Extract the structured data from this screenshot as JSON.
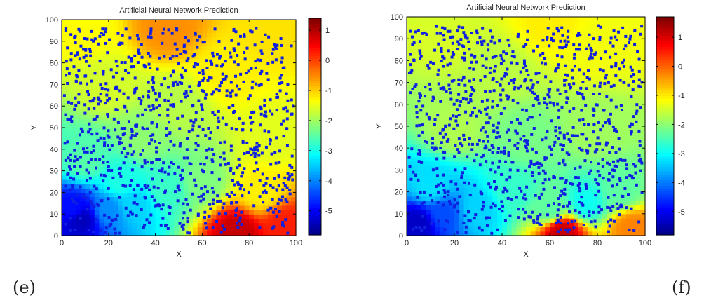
{
  "figure": {
    "labels": [
      "(e)",
      "(f)"
    ]
  },
  "chart_data": [
    {
      "type": "heatmap",
      "panel_label": "(e)",
      "title": "Artificial Neural Network Prediction",
      "xlabel": "X",
      "ylabel": "Y",
      "xlim": [
        0,
        100
      ],
      "ylim": [
        0,
        100
      ],
      "x_ticks": [
        0,
        20,
        40,
        60,
        80,
        100
      ],
      "y_ticks": [
        0,
        10,
        20,
        30,
        40,
        50,
        60,
        70,
        80,
        90,
        100
      ],
      "colorbar": {
        "range": [
          -5.8,
          1.4
        ],
        "ticks": [
          1,
          0,
          -1,
          -2,
          -3,
          -4,
          -5
        ],
        "colormap": "jet"
      },
      "field": [
        {
          "x": 8,
          "y": 8,
          "value": -5.4
        },
        {
          "x": 5,
          "y": 12,
          "value": -4.8
        },
        {
          "x": 20,
          "y": 12,
          "value": -3.9
        },
        {
          "x": 30,
          "y": 15,
          "value": -3.4
        },
        {
          "x": 25,
          "y": 25,
          "value": -2.9
        },
        {
          "x": 45,
          "y": 22,
          "value": -2.7
        },
        {
          "x": 10,
          "y": 35,
          "value": -2.5
        },
        {
          "x": 35,
          "y": 45,
          "value": -2.1
        },
        {
          "x": 60,
          "y": 25,
          "value": -2.2
        },
        {
          "x": 85,
          "y": 20,
          "value": -1.2
        },
        {
          "x": 95,
          "y": 5,
          "value": 0.3
        },
        {
          "x": 75,
          "y": 2,
          "value": 0.9
        },
        {
          "x": 90,
          "y": 45,
          "value": -1.5
        },
        {
          "x": 50,
          "y": 60,
          "value": -1.8
        },
        {
          "x": 20,
          "y": 70,
          "value": -1.6
        },
        {
          "x": 70,
          "y": 75,
          "value": -1.2
        },
        {
          "x": 45,
          "y": 97,
          "value": -0.5
        },
        {
          "x": 10,
          "y": 95,
          "value": -1.3
        },
        {
          "x": 90,
          "y": 95,
          "value": -1.1
        }
      ],
      "dots": {
        "color": "#1020e0",
        "count": 950,
        "seed": 7
      }
    },
    {
      "type": "heatmap",
      "panel_label": "(f)",
      "title": "Artificial Neural Network Prediction",
      "xlabel": "X",
      "ylabel": "Y",
      "xlim": [
        0,
        100
      ],
      "ylim": [
        0,
        100
      ],
      "x_ticks": [
        0,
        20,
        40,
        60,
        80,
        100
      ],
      "y_ticks": [
        0,
        10,
        20,
        30,
        40,
        50,
        60,
        70,
        80,
        90,
        100
      ],
      "colorbar": {
        "range": [
          -5.8,
          1.7
        ],
        "ticks": [
          1,
          0,
          -1,
          -2,
          -3,
          -4,
          -5
        ],
        "colormap": "jet"
      },
      "field": [
        {
          "x": 5,
          "y": 6,
          "value": -5.3
        },
        {
          "x": 15,
          "y": 10,
          "value": -4.3
        },
        {
          "x": 30,
          "y": 12,
          "value": -3.3
        },
        {
          "x": 10,
          "y": 22,
          "value": -3.2
        },
        {
          "x": 45,
          "y": 20,
          "value": -2.6
        },
        {
          "x": 60,
          "y": 12,
          "value": -2.3
        },
        {
          "x": 75,
          "y": 15,
          "value": -2.9
        },
        {
          "x": 90,
          "y": 20,
          "value": -2.3
        },
        {
          "x": 95,
          "y": 4,
          "value": -0.2
        },
        {
          "x": 65,
          "y": 2,
          "value": 1.2
        },
        {
          "x": 20,
          "y": 50,
          "value": -1.7
        },
        {
          "x": 50,
          "y": 45,
          "value": -2.1
        },
        {
          "x": 80,
          "y": 50,
          "value": -1.8
        },
        {
          "x": 40,
          "y": 75,
          "value": -1.6
        },
        {
          "x": 80,
          "y": 85,
          "value": -1.2
        },
        {
          "x": 15,
          "y": 92,
          "value": -1.4
        },
        {
          "x": 60,
          "y": 97,
          "value": -1.0
        },
        {
          "x": 95,
          "y": 95,
          "value": -1.2
        }
      ],
      "dots": {
        "color": "#1020e0",
        "count": 1000,
        "seed": 19
      }
    }
  ]
}
